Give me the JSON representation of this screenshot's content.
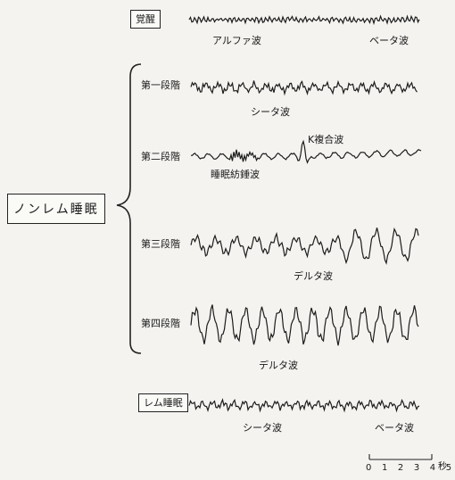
{
  "group_label": "ノンレム睡眠",
  "scale": {
    "ticks": "0 1 2 3 4 5",
    "unit": "秒"
  },
  "traces": [
    {
      "label": "覚醒",
      "boxed": true,
      "annotations": [
        "アルファ波",
        "ベータ波"
      ]
    },
    {
      "label": "第一段階",
      "boxed": false,
      "annotations": [
        "シータ波"
      ]
    },
    {
      "label": "第二段階",
      "boxed": false,
      "annotations": [
        "K複合波",
        "睡眠紡錘波"
      ]
    },
    {
      "label": "第三段階",
      "boxed": false,
      "annotations": [
        "デルタ波"
      ]
    },
    {
      "label": "第四段階",
      "boxed": false,
      "annotations": [
        "デルタ波"
      ]
    },
    {
      "label": "レム睡眠",
      "boxed": true,
      "annotations": [
        "シータ波",
        "ベータ波"
      ]
    }
  ]
}
